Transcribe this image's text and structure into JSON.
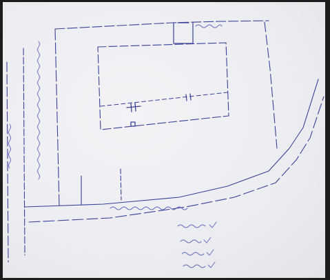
{
  "image": {
    "kind": "photo of hand-drawn site plan sketch on paper",
    "ink_color": "#3b3f98",
    "paper_color": "#eeeff3"
  },
  "labels": {
    "left_vertical_1": "",
    "left_vertical_2": "",
    "top_right_box": "",
    "road_label": "",
    "notes": [
      "",
      "",
      "",
      ""
    ]
  }
}
